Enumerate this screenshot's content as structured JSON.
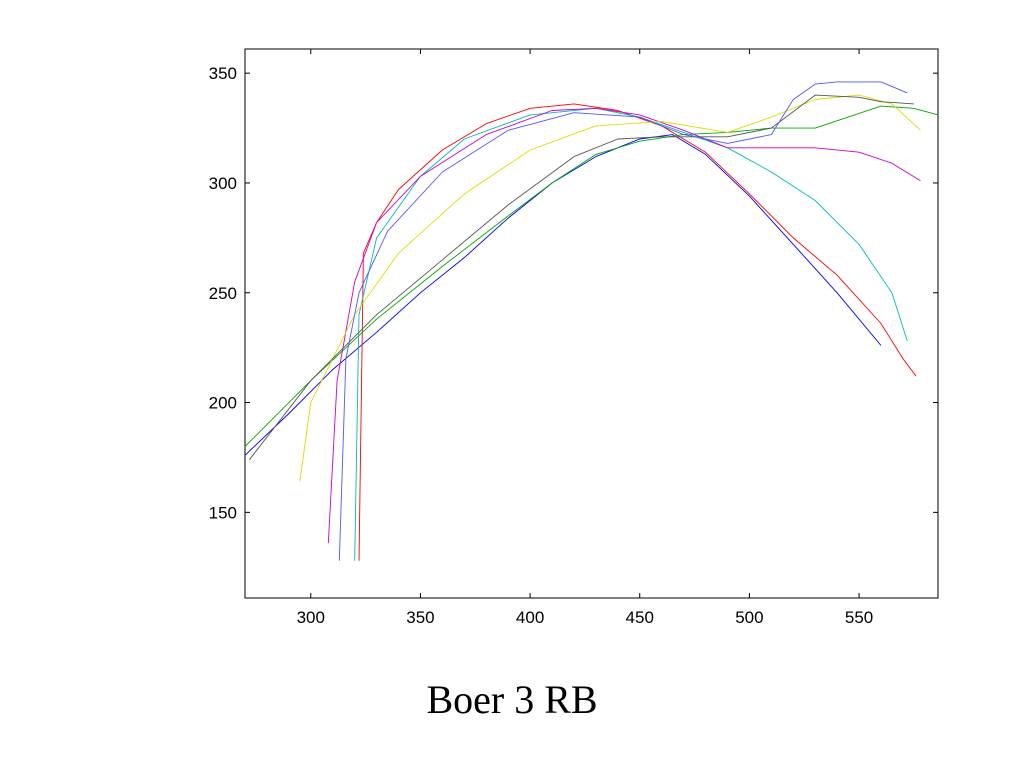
{
  "caption": "Boer 3 RB",
  "chart_data": {
    "type": "line",
    "title": "Boer 3 RB",
    "xlabel": "",
    "ylabel": "",
    "xlim": [
      270,
      586
    ],
    "ylim": [
      111,
      361
    ],
    "xticks": [
      300,
      350,
      400,
      450,
      500,
      550
    ],
    "yticks": [
      150,
      200,
      250,
      300,
      350
    ],
    "grid": false,
    "legend": "none",
    "series": [
      {
        "color": "#0000ff",
        "x": [
          270,
          290,
          310,
          330,
          350,
          370,
          390,
          410,
          430,
          450,
          465,
          480,
          500,
          520,
          540,
          560
        ],
        "y": [
          176,
          195,
          215,
          232,
          250,
          266,
          284,
          300,
          312,
          320,
          322,
          313,
          294,
          272,
          250,
          226
        ]
      },
      {
        "color": "#ff0000",
        "x": [
          322,
          324,
          330,
          340,
          360,
          380,
          400,
          420,
          440,
          460,
          480,
          500,
          520,
          540,
          560,
          570,
          576
        ],
        "y": [
          128,
          268,
          282,
          297,
          315,
          327,
          334,
          336,
          333,
          326,
          314,
          295,
          275,
          258,
          236,
          220,
          212
        ]
      },
      {
        "color": "#00aa00",
        "x": [
          270,
          300,
          330,
          360,
          390,
          410,
          430,
          450,
          470,
          490,
          510,
          530,
          545,
          560,
          575,
          586
        ],
        "y": [
          180,
          210,
          238,
          262,
          285,
          300,
          313,
          319,
          322,
          323,
          325,
          325,
          330,
          335,
          334,
          331
        ]
      },
      {
        "color": "#00bbbb",
        "x": [
          320,
          322,
          330,
          350,
          370,
          400,
          430,
          450,
          470,
          490,
          510,
          530,
          550,
          565,
          572
        ],
        "y": [
          128,
          240,
          275,
          303,
          320,
          331,
          334,
          330,
          323,
          316,
          305,
          292,
          272,
          250,
          228
        ]
      },
      {
        "color": "#cc00cc",
        "x": [
          308,
          312,
          320,
          330,
          350,
          380,
          410,
          430,
          450,
          470,
          490,
          510,
          530,
          550,
          565,
          578
        ],
        "y": [
          136,
          210,
          255,
          282,
          303,
          322,
          333,
          334,
          331,
          324,
          316,
          316,
          316,
          314,
          309,
          301
        ]
      },
      {
        "color": "#dddd00",
        "x": [
          295,
          300,
          320,
          340,
          370,
          400,
          430,
          460,
          490,
          510,
          530,
          550,
          565,
          578
        ],
        "y": [
          164,
          200,
          240,
          268,
          295,
          315,
          326,
          328,
          323,
          330,
          338,
          340,
          336,
          324
        ]
      },
      {
        "color": "#555555",
        "x": [
          272,
          300,
          330,
          360,
          390,
          420,
          440,
          460,
          490,
          510,
          530,
          550,
          560,
          575
        ],
        "y": [
          174,
          210,
          240,
          265,
          290,
          312,
          320,
          321,
          321,
          325,
          340,
          339,
          337,
          336
        ]
      },
      {
        "color": "#5555ff",
        "x": [
          313,
          316,
          322,
          335,
          360,
          390,
          420,
          450,
          470,
          490,
          510,
          520,
          530,
          540,
          560,
          572
        ],
        "y": [
          128,
          220,
          250,
          278,
          305,
          324,
          332,
          330,
          322,
          318,
          322,
          338,
          345,
          346,
          346,
          341
        ]
      }
    ]
  }
}
